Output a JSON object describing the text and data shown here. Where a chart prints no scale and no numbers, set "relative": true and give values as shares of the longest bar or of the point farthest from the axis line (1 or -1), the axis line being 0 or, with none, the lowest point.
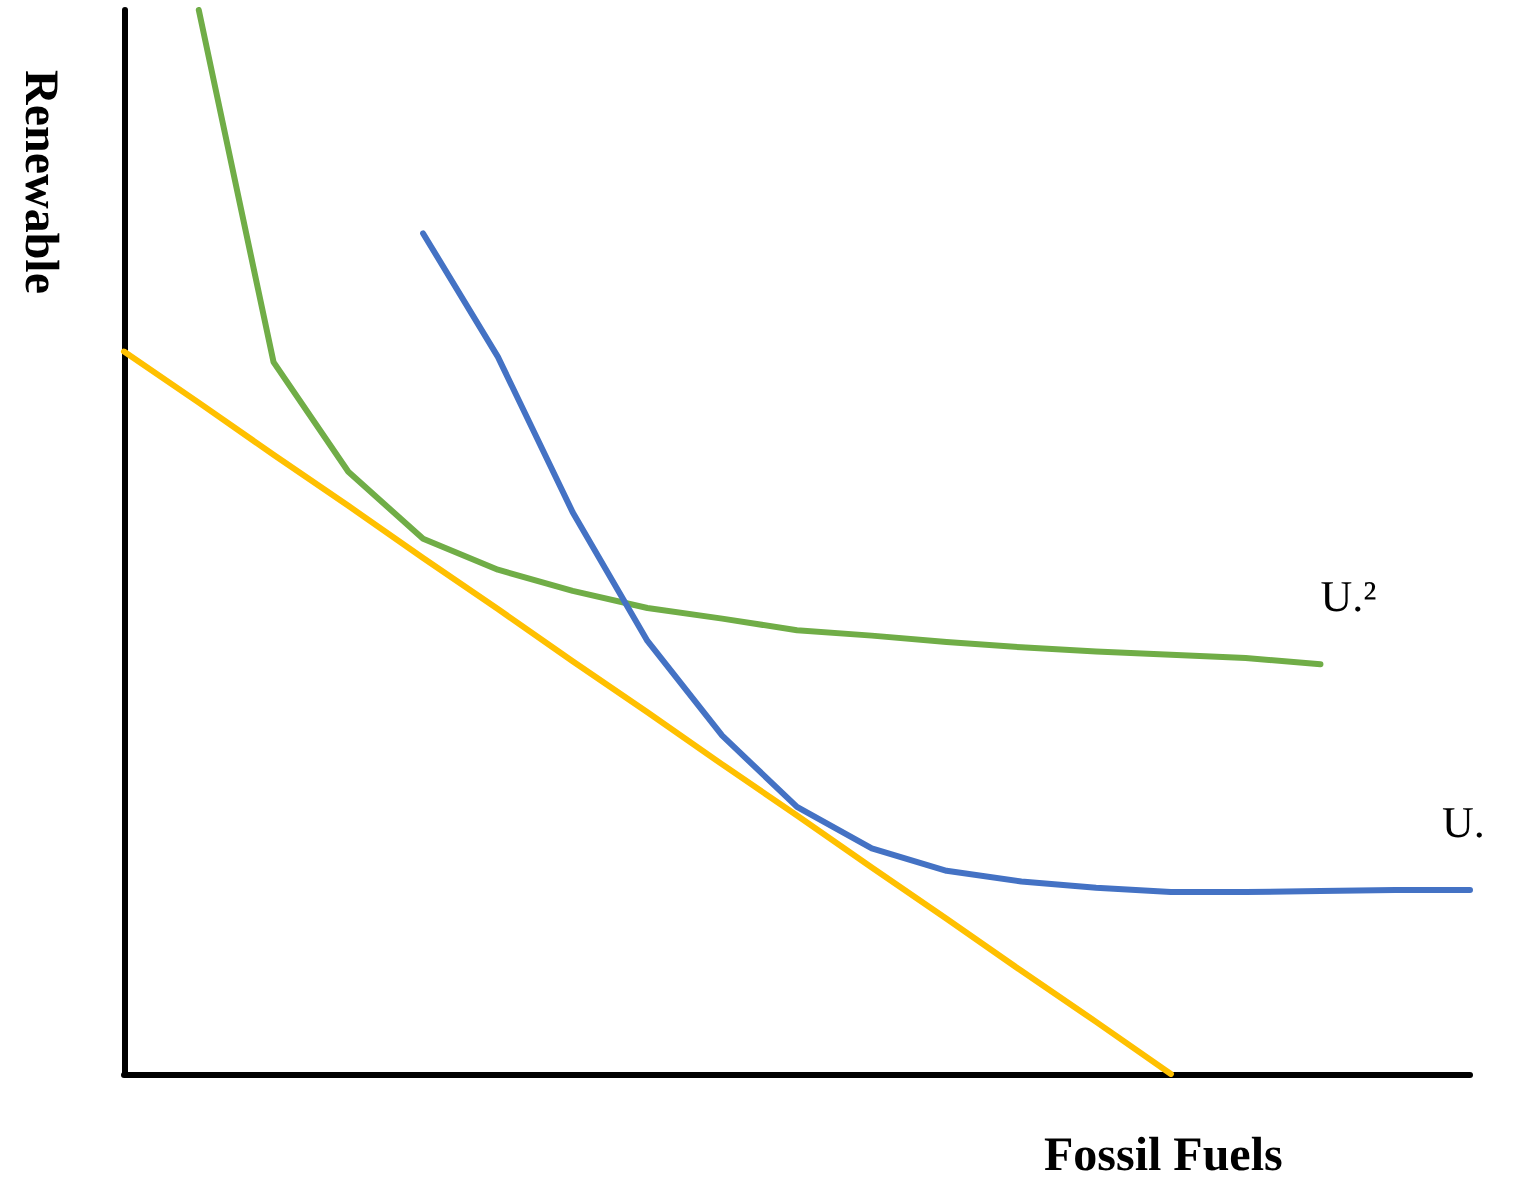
{
  "chart_data": {
    "type": "line",
    "relative": true,
    "xlabel": "Fossil Fuels",
    "ylabel": "Renewable",
    "grid": false,
    "legend": false,
    "marker": "none",
    "line_style": "solid",
    "categories": [
      null,
      null,
      null,
      null,
      null,
      null,
      null,
      null,
      null,
      null,
      null,
      null,
      null,
      null,
      null,
      null,
      null,
      null,
      null
    ],
    "series": [
      {
        "name": "U.²",
        "color": "#70ad47",
        "values": [
          null,
          1.0,
          0.669,
          0.566,
          0.503,
          0.474,
          0.454,
          0.438,
          0.428,
          0.417,
          0.412,
          0.406,
          0.401,
          0.397,
          0.394,
          0.391,
          0.385,
          null,
          null
        ]
      },
      {
        "name": "U.",
        "color": "#4472c4",
        "values": [
          null,
          null,
          null,
          null,
          0.79,
          0.674,
          0.528,
          0.407,
          0.318,
          0.251,
          0.212,
          0.191,
          0.181,
          0.175,
          0.171,
          0.171,
          0.172,
          0.173,
          0.173
        ]
      },
      {
        "color": "#ffc000",
        "values": [
          0.679,
          0.631,
          0.582,
          0.534,
          0.485,
          0.437,
          0.388,
          0.34,
          0.291,
          0.243,
          0.194,
          0.146,
          0.097,
          0.049,
          0,
          null,
          null,
          null,
          null
        ]
      }
    ]
  }
}
